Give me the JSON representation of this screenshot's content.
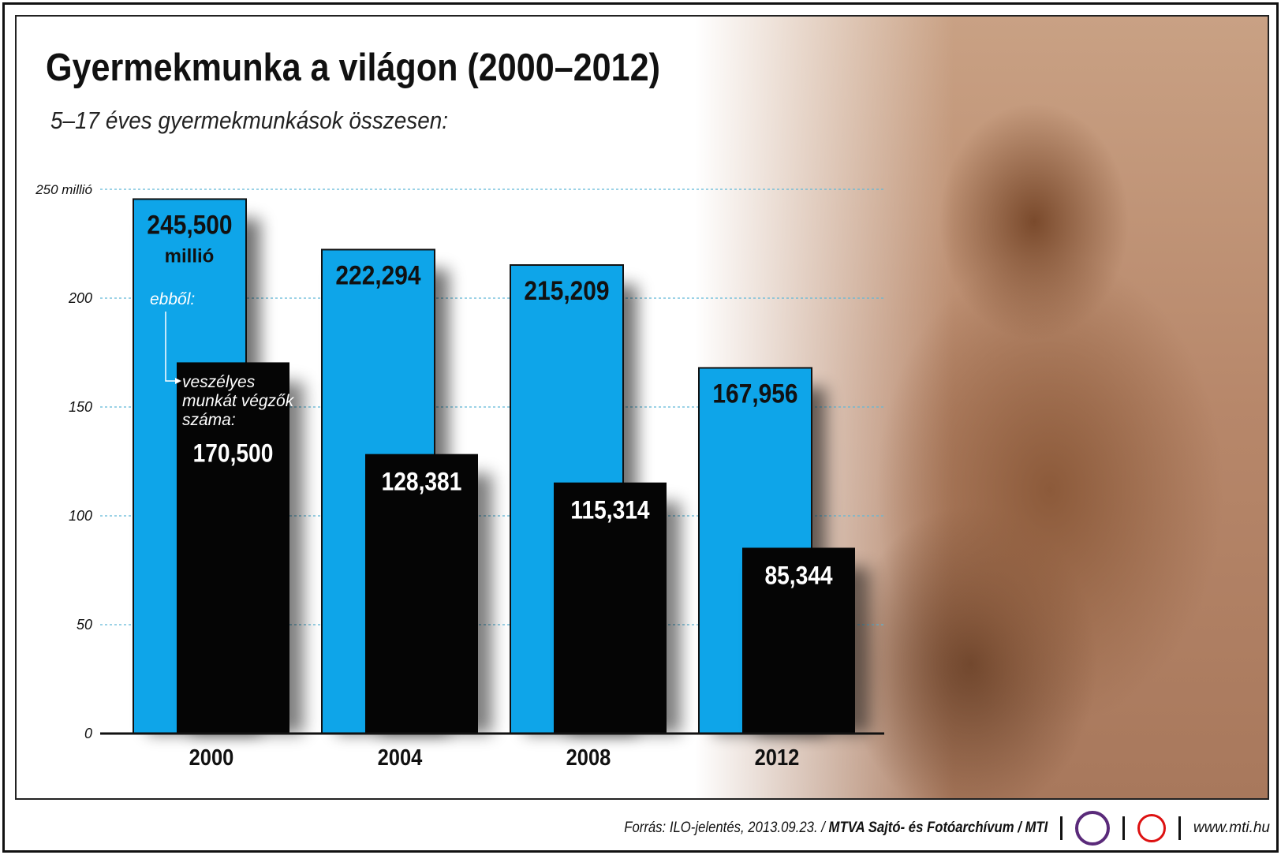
{
  "title": "Gyermekmunka a világon (2000–2012)",
  "subtitle": "5–17 éves gyermekmunkások összesen:",
  "chart_data": {
    "type": "bar",
    "categories": [
      "2000",
      "2004",
      "2008",
      "2012"
    ],
    "series": [
      {
        "values": [
          245.5,
          222.294,
          215.209,
          167.956
        ],
        "labels": [
          "245,500",
          "222,294",
          "215,209",
          "167,956"
        ],
        "color": "#0ea5e9"
      },
      {
        "values": [
          170.5,
          128.381,
          115.314,
          85.344
        ],
        "labels": [
          "170,500",
          "128,381",
          "115,314",
          "85,344"
        ],
        "color": "#050505"
      }
    ],
    "first_label_unit": "millió",
    "annotation_top": "ebből:",
    "annotation_lines": [
      "veszélyes",
      "munkát végzők",
      "száma:"
    ],
    "yticks": [
      "0",
      "50",
      "100",
      "150",
      "200",
      "250 millió"
    ],
    "ylim": [
      0,
      250
    ],
    "grid": true
  },
  "footer": {
    "source": "Forrás: ILO-jelentés, 2013.09.23. /",
    "org": "MTVA Sajtó- és Fotóarchívum / MTI",
    "logo_text": "MTVA",
    "url": "www.mti.hu"
  }
}
